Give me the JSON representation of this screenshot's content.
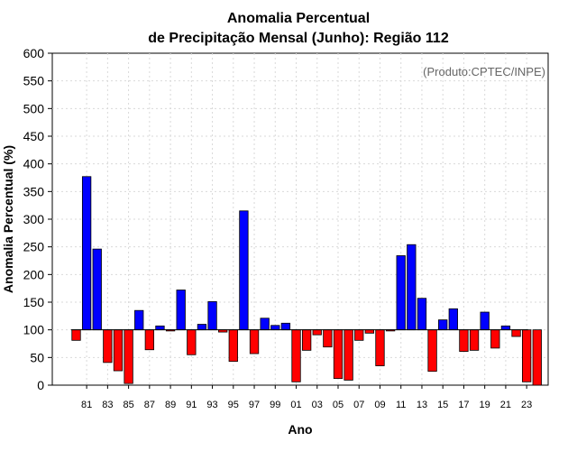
{
  "chart_data": {
    "type": "bar",
    "title_line1": "Anomalia Percentual",
    "title_line2": "de Precipitação Mensal (Junho): Região 112",
    "xlabel": "Ano",
    "ylabel": "Anomalia Percentual (%)",
    "credit": "(Produto:CPTEC/INPE)",
    "ylim": [
      0,
      600
    ],
    "yticks": [
      0,
      50,
      100,
      150,
      200,
      250,
      300,
      350,
      400,
      450,
      500,
      550,
      600
    ],
    "baseline": 100,
    "grid": true,
    "colors": {
      "above": "#0000ff",
      "below": "#ff0000",
      "grid": "#d9d9d9",
      "outline": "#000000"
    },
    "years": [
      "80",
      "81",
      "82",
      "83",
      "84",
      "85",
      "86",
      "87",
      "88",
      "89",
      "90",
      "91",
      "92",
      "93",
      "94",
      "95",
      "96",
      "97",
      "98",
      "99",
      "00",
      "01",
      "02",
      "03",
      "04",
      "05",
      "06",
      "07",
      "08",
      "09",
      "10",
      "11",
      "12",
      "13",
      "14",
      "15",
      "16",
      "17",
      "18",
      "19",
      "20",
      "21",
      "22",
      "23",
      "24"
    ],
    "tick_labels": [
      "81",
      "83",
      "85",
      "87",
      "89",
      "91",
      "93",
      "95",
      "97",
      "99",
      "01",
      "03",
      "05",
      "07",
      "09",
      "11",
      "13",
      "15",
      "17",
      "19",
      "21",
      "23"
    ],
    "values": [
      81,
      377,
      246,
      41,
      26,
      3,
      135,
      64,
      107,
      98,
      172,
      55,
      110,
      151,
      96,
      43,
      315,
      57,
      121,
      108,
      112,
      6,
      63,
      91,
      69,
      12,
      9,
      81,
      94,
      35,
      98,
      234,
      254,
      157,
      25,
      118,
      138,
      61,
      63,
      132,
      67,
      107,
      88,
      6,
      0
    ]
  }
}
